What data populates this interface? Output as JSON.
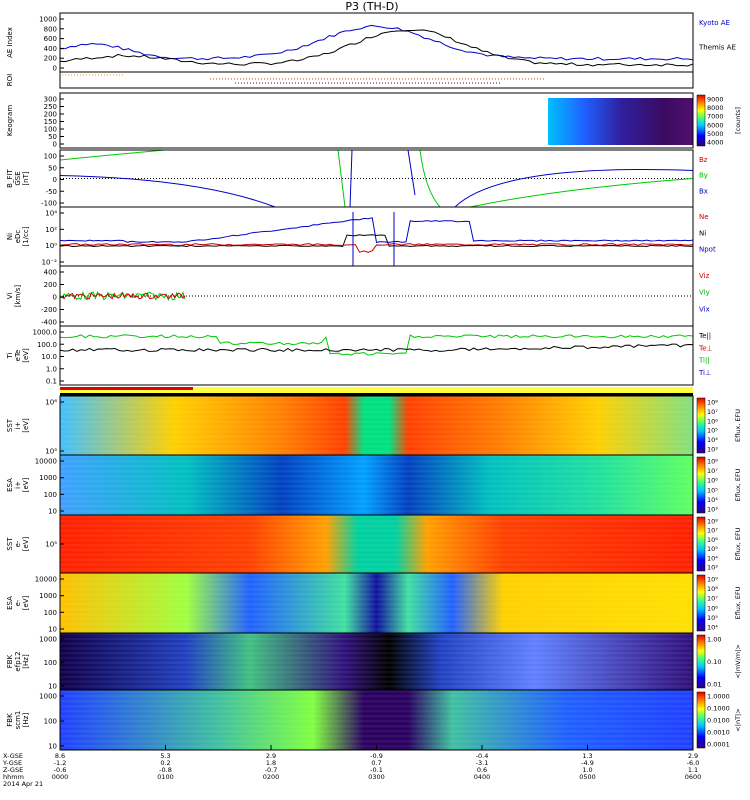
{
  "title": "P3 (TH-D)",
  "panels": [
    {
      "key": "ae",
      "ylabels": [
        "AE Index"
      ],
      "yticks": [
        "1000",
        "800",
        "600",
        "400",
        "200",
        "0"
      ],
      "legend": [
        {
          "text": "Kyoto AE",
          "color": "#0000c8"
        },
        {
          "text": "Themis AE",
          "color": "#000000"
        }
      ]
    },
    {
      "key": "roi",
      "ylabels": [
        "ROI"
      ],
      "yticks": [],
      "legend": []
    },
    {
      "key": "keogram",
      "ylabels": [
        "Keogram"
      ],
      "yticks": [
        "300",
        "250",
        "200",
        "150",
        "100",
        "50",
        "0"
      ],
      "colorbar": {
        "ticks": [
          "9000",
          "8000",
          "7000",
          "6000",
          "5000",
          "4000"
        ],
        "label": "[counts]"
      }
    },
    {
      "key": "bfield",
      "ylabels": [
        "B_FIT",
        "GSE",
        "[nT]"
      ],
      "yticks": [
        "100",
        "50",
        "0",
        "-50",
        "-100"
      ],
      "legend": [
        {
          "text": "Bz",
          "color": "#c80000"
        },
        {
          "text": "By",
          "color": "#00b400"
        },
        {
          "text": "Bx",
          "color": "#0000c8"
        }
      ]
    },
    {
      "key": "density",
      "ylabels": [
        "Ni",
        "eDc",
        "[1/cc]"
      ],
      "yticks": [
        "10⁴",
        "10²",
        "10⁰",
        "10⁻²"
      ],
      "legend": [
        {
          "text": "Ne",
          "color": "#c80000"
        },
        {
          "text": "Ni",
          "color": "#000000"
        },
        {
          "text": "Npot",
          "color": "#0000c8"
        }
      ]
    },
    {
      "key": "velocity",
      "ylabels": [
        "Vi",
        "[km/s]"
      ],
      "yticks": [
        "400",
        "200",
        "0",
        "-200",
        "-400"
      ],
      "legend": [
        {
          "text": "Viz",
          "color": "#c80000"
        },
        {
          "text": "Viy",
          "color": "#00b400"
        },
        {
          "text": "Vix",
          "color": "#0000c8"
        }
      ]
    },
    {
      "key": "temp",
      "ylabels": [
        "Ti",
        "eTe",
        "[eV]"
      ],
      "yticks": [
        "1000.0",
        "100.0",
        "10.0",
        "1.0",
        "0.1"
      ],
      "legend": [
        {
          "text": "Te||",
          "color": "#000000"
        },
        {
          "text": "Te⊥",
          "color": "#c80000"
        },
        {
          "text": "Ti||",
          "color": "#00b400"
        },
        {
          "text": "Ti⊥",
          "color": "#0000c8"
        }
      ]
    },
    {
      "key": "sst_i",
      "ylabels": [
        "SST",
        "i+",
        "[eV]"
      ],
      "yticks": [
        "10⁶",
        "10⁵"
      ],
      "colorbar": {
        "ticks": [
          "10⁸",
          "10⁷",
          "10⁶",
          "10⁵",
          "10⁴",
          "10³"
        ],
        "label": "Eflux, EFU"
      }
    },
    {
      "key": "esa_i",
      "ylabels": [
        "ESA",
        "i+",
        "[eV]"
      ],
      "yticks": [
        "10000",
        "1000",
        "100",
        "10"
      ],
      "colorbar": {
        "ticks": [
          "10⁸",
          "10⁷",
          "10⁶",
          "10⁵",
          "10⁴",
          "10³"
        ],
        "label": "Eflux, EFU"
      }
    },
    {
      "key": "sst_e",
      "ylabels": [
        "SST",
        "e-",
        "[eV]"
      ],
      "yticks": [
        "10⁵"
      ],
      "colorbar": {
        "ticks": [
          "10⁸",
          "10⁷",
          "10⁶",
          "10⁵",
          "10⁴",
          "10³"
        ],
        "label": "Eflux, EFU"
      }
    },
    {
      "key": "esa_e",
      "ylabels": [
        "ESA",
        "e-",
        "[eV]"
      ],
      "yticks": [
        "10000",
        "1000",
        "100",
        "10"
      ],
      "colorbar": {
        "ticks": [
          "10⁹",
          "10⁸",
          "10⁷",
          "10⁶",
          "10⁵",
          "10⁴"
        ],
        "label": "Eflux, EFU"
      }
    },
    {
      "key": "fbk_e",
      "ylabels": [
        "FBK",
        "efp12",
        "[Hz]"
      ],
      "yticks": [
        "1000",
        "100",
        "10"
      ],
      "colorbar": {
        "ticks": [
          "1.00",
          "0.10",
          "0.01"
        ],
        "label": "<|mV/m|>"
      }
    },
    {
      "key": "fbk_b",
      "ylabels": [
        "FBK",
        "scm1",
        "[Hz]"
      ],
      "yticks": [
        "1000",
        "100",
        "10"
      ],
      "colorbar": {
        "ticks": [
          "1.0000",
          "0.1000",
          "0.0100",
          "0.0010",
          "0.0001"
        ],
        "label": "<|nT|>"
      }
    }
  ],
  "x_axis": {
    "row_labels": [
      "X-GSE",
      "Y-GSE",
      "Z-GSE",
      "hhmm",
      "2014 Apr 21"
    ],
    "ticks": [
      {
        "x": "8.6",
        "y": "-1.2",
        "z": "-0.6",
        "t": "0000"
      },
      {
        "x": "5.3",
        "y": "0.2",
        "z": "-0.8",
        "t": "0100"
      },
      {
        "x": "2.9",
        "y": "1.8",
        "z": "-0.7",
        "t": "0200"
      },
      {
        "x": "-0.9",
        "y": "0.7",
        "z": "-0.1",
        "t": "0300"
      },
      {
        "x": "-0.4",
        "y": "-3.1",
        "z": "0.6",
        "t": "0400"
      },
      {
        "x": "1.3",
        "y": "-4.9",
        "z": "1.0",
        "t": "0500"
      },
      {
        "x": "2.9",
        "y": "-6.0",
        "z": "1.1",
        "t": "0600"
      }
    ]
  }
}
